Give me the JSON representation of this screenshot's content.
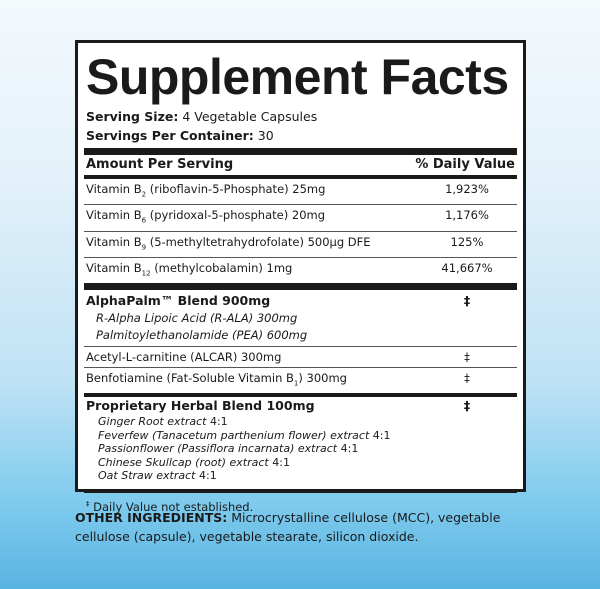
{
  "title": "Supplement Facts",
  "serving_size_label": "Serving Size:",
  "serving_size": "4 Vegetable Capsules",
  "servings_label": "Servings Per Container:",
  "servings": "30",
  "header": {
    "amount": "Amount Per Serving",
    "dv": "% Daily Value"
  },
  "vitamins": [
    {
      "name": "Vitamin B",
      "sub": "2",
      "desc": "(riboflavin-5-Phosphate) 25mg",
      "dv": "1,923%"
    },
    {
      "name": "Vitamin B",
      "sub": "6",
      "desc": "(pyridoxal-5-phosphate) 20mg",
      "dv": "1,176%"
    },
    {
      "name": "Vitamin B",
      "sub": "9",
      "desc": "(5-methyltetrahydrofolate) 500µg DFE",
      "dv": "125%"
    },
    {
      "name": "Vitamin B",
      "sub": "12",
      "desc": "(methylcobalamin) 1mg",
      "dv": "41,667%"
    }
  ],
  "alphapalm": {
    "name": "AlphaPalm™ Blend  900mg",
    "dv": "‡",
    "items": [
      "R-Alpha Lipoic Acid (R-ALA)  300mg",
      "Palmitoylethanolamide (PEA)  600mg"
    ]
  },
  "alcar": {
    "name": "Acetyl-L-carnitine (ALCAR)  300mg",
    "dv": "‡"
  },
  "benfo": {
    "name": "Benfotiamine (Fat-Soluble Vitamin B",
    "sub": "1",
    "tail": ")   300mg",
    "dv": "‡"
  },
  "herbal": {
    "name": "Proprietary Herbal Blend  100mg",
    "dv": "‡",
    "items": [
      {
        "name": "Ginger Root extract",
        "ratio": "4:1"
      },
      {
        "name": "Feverfew (Tanacetum parthenium flower) extract",
        "ratio": "4:1"
      },
      {
        "name": "Passionflower (Passiflora incarnata) extract",
        "ratio": "4:1"
      },
      {
        "name": "Chinese Skullcap (root) extract",
        "ratio": "4:1"
      },
      {
        "name": "Oat Straw extract",
        "ratio": "4:1"
      }
    ]
  },
  "footnote": {
    "mark": "‡",
    "text": "Daily Value not established."
  },
  "other": {
    "label": "OTHER INGREDIENTS:",
    "text": "Microcrystalline cellulose (MCC), vegetable cellulose (capsule), vegetable stearate, silicon dioxide."
  }
}
